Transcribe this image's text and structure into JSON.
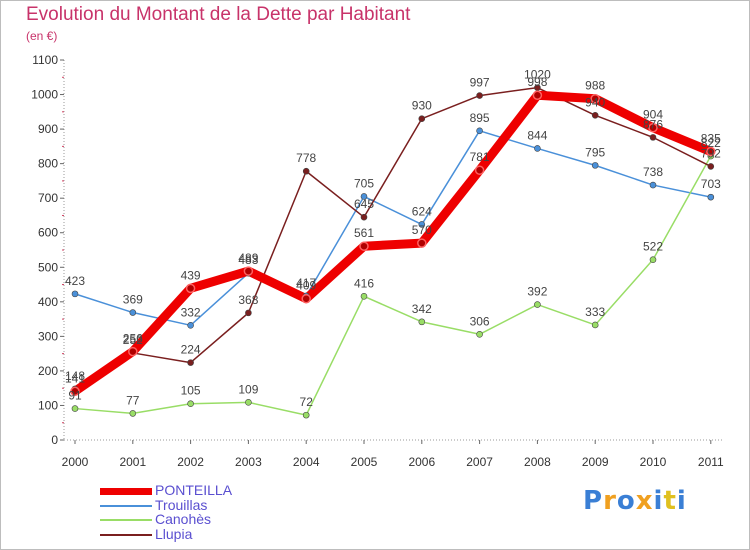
{
  "chart_data": {
    "type": "line",
    "title": "Evolution du Montant de la Dette par Habitant",
    "unit_label": "(en €)",
    "categories": [
      "2000",
      "2001",
      "2002",
      "2003",
      "2004",
      "2005",
      "2006",
      "2007",
      "2008",
      "2009",
      "2010",
      "2011"
    ],
    "ylim": [
      0,
      1100
    ],
    "yticks": [
      0,
      100,
      200,
      300,
      400,
      500,
      600,
      700,
      800,
      900,
      1000,
      1100
    ],
    "grid": false,
    "legend_position": "bottom-left",
    "series": [
      {
        "name": "PONTEILLA",
        "color": "#ee0000",
        "thick": true,
        "values": [
          141,
          256,
          439,
          489,
          409,
          561,
          570,
          781,
          998,
          988,
          904,
          835
        ]
      },
      {
        "name": "Trouillas",
        "color": "#4a90d9",
        "thick": false,
        "values": [
          423,
          369,
          332,
          483,
          417,
          705,
          624,
          895,
          844,
          795,
          738,
          703
        ]
      },
      {
        "name": "Canohès",
        "color": "#99dd66",
        "thick": false,
        "values": [
          91,
          77,
          105,
          109,
          72,
          416,
          342,
          306,
          392,
          333,
          522,
          822
        ]
      },
      {
        "name": "Llupia",
        "color": "#7a1f1f",
        "thick": false,
        "values": [
          148,
          252,
          224,
          368,
          778,
          645,
          930,
          997,
          1020,
          940,
          876,
          792
        ]
      }
    ]
  },
  "logo": {
    "letters": [
      "P",
      "r",
      "o",
      "x",
      "i",
      "t",
      "i"
    ],
    "colors": [
      "#3a7fd5",
      "#f0a020",
      "#3a7fd5",
      "#f0a020",
      "#3a7fd5",
      "#e0c020",
      "#3a7fd5"
    ]
  }
}
